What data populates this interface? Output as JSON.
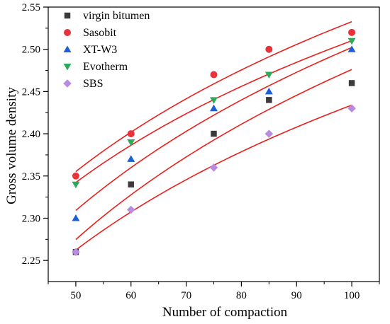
{
  "chart_data": {
    "type": "scatter",
    "title": "",
    "xlabel": "Number of compaction",
    "ylabel": "Gross volume density",
    "xlim": [
      45,
      105
    ],
    "ylim": [
      2.225,
      2.55
    ],
    "xticks": [
      50,
      60,
      70,
      80,
      90,
      100
    ],
    "yticks": [
      2.25,
      2.3,
      2.35,
      2.4,
      2.45,
      2.5,
      2.55
    ],
    "xtick_labels": [
      "50",
      "60",
      "70",
      "80",
      "90",
      "100"
    ],
    "ytick_labels": [
      "2.25",
      "2.30",
      "2.35",
      "2.40",
      "2.45",
      "2.50",
      "2.55"
    ],
    "grid": false,
    "legend_position": "top-left",
    "fit_line_color": "#e8201d",
    "x": [
      50,
      60,
      75,
      85,
      100
    ],
    "series": [
      {
        "name": "virgin bitumen",
        "marker": "square",
        "color": "#3b3b3b",
        "values": [
          2.26,
          2.34,
          2.4,
          2.44,
          2.46
        ]
      },
      {
        "name": "Sasobit",
        "marker": "circle",
        "color": "#e8333a",
        "values": [
          2.35,
          2.4,
          2.47,
          2.5,
          2.52
        ]
      },
      {
        "name": "XT-W3",
        "marker": "triangle-up",
        "color": "#1c5fd6",
        "values": [
          2.3,
          2.37,
          2.43,
          2.45,
          2.5
        ]
      },
      {
        "name": "Evotherm",
        "marker": "triangle-down",
        "color": "#2eaa5c",
        "values": [
          2.34,
          2.39,
          2.44,
          2.47,
          2.51
        ]
      },
      {
        "name": "SBS",
        "marker": "diamond",
        "color": "#b88be0",
        "values": [
          2.26,
          2.31,
          2.36,
          2.4,
          2.43
        ]
      }
    ]
  }
}
